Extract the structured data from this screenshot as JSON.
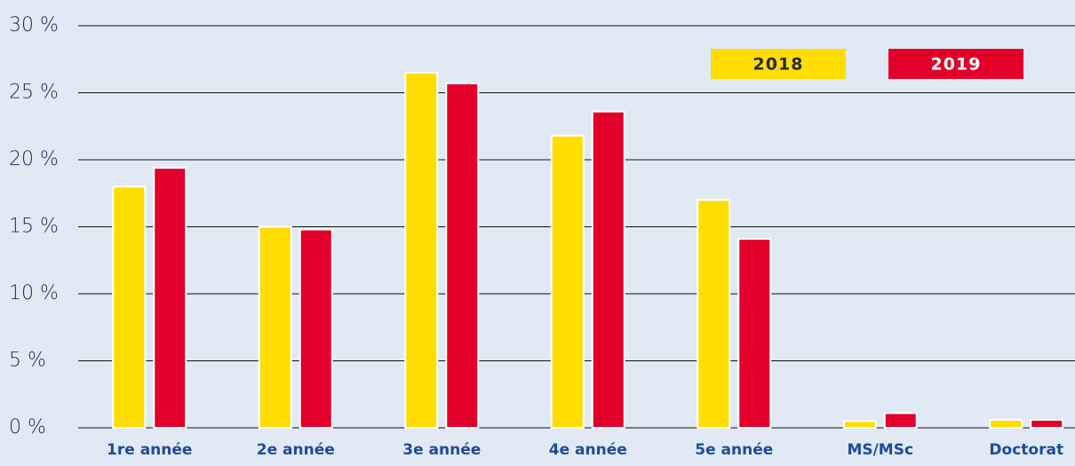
{
  "chart_data": {
    "type": "bar",
    "categories": [
      "1re année",
      "2e année",
      "3e année",
      "4e année",
      "5e année",
      "MS/MSc",
      "Doctorat"
    ],
    "series": [
      {
        "name": "2018",
        "color": "#ffdd00",
        "values": [
          18.0,
          15.0,
          26.5,
          21.8,
          17.0,
          0.5,
          0.6
        ]
      },
      {
        "name": "2019",
        "color": "#e2002a",
        "values": [
          19.4,
          14.8,
          25.7,
          23.6,
          14.1,
          1.1,
          0.6
        ]
      }
    ],
    "ylim": [
      0,
      30
    ],
    "yticks": [
      {
        "value": 0,
        "label": "0 %"
      },
      {
        "value": 5,
        "label": "5 %"
      },
      {
        "value": 10,
        "label": "10 %"
      },
      {
        "value": 15,
        "label": "15 %"
      },
      {
        "value": 20,
        "label": "20 %"
      },
      {
        "value": 25,
        "label": "25 %"
      },
      {
        "value": 30,
        "label": "30 %"
      }
    ],
    "grid": true
  }
}
